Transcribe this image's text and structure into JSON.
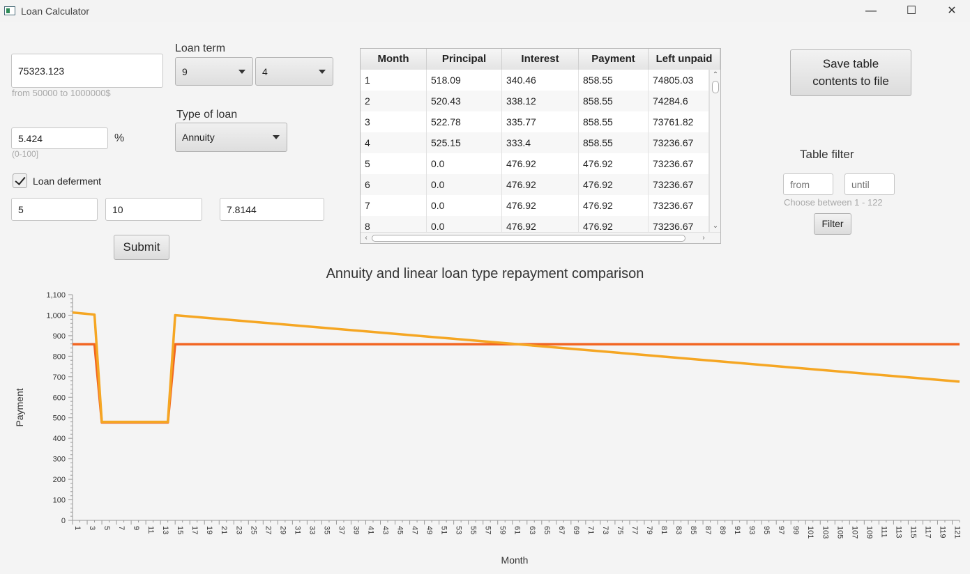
{
  "window": {
    "title": "Loan Calculator"
  },
  "loan_amount": {
    "value": "75323.123",
    "hint": "from 50000 to 1000000$"
  },
  "loan_term": {
    "label": "Loan term",
    "years": "9",
    "months": "4"
  },
  "interest": {
    "value": "5.424",
    "unit": "%",
    "hint": "(0-100]"
  },
  "loan_type": {
    "label": "Type of loan",
    "value": "Annuity"
  },
  "deferment": {
    "label": "Loan deferment",
    "checked": true,
    "start": "5",
    "end": "10",
    "rate": "7.8144"
  },
  "submit_label": "Submit",
  "save_label_line1": "Save table",
  "save_label_line2": "contents to file",
  "filter": {
    "title": "Table filter",
    "from_placeholder": "from",
    "until_placeholder": "until",
    "hint": "Choose between 1 - 122",
    "button": "Filter"
  },
  "table": {
    "columns": [
      "Month",
      "Principal",
      "Interest",
      "Payment",
      "Left unpaid"
    ],
    "rows": [
      [
        "1",
        "518.09",
        "340.46",
        "858.55",
        "74805.03"
      ],
      [
        "2",
        "520.43",
        "338.12",
        "858.55",
        "74284.6"
      ],
      [
        "3",
        "522.78",
        "335.77",
        "858.55",
        "73761.82"
      ],
      [
        "4",
        "525.15",
        "333.4",
        "858.55",
        "73236.67"
      ],
      [
        "5",
        "0.0",
        "476.92",
        "476.92",
        "73236.67"
      ],
      [
        "6",
        "0.0",
        "476.92",
        "476.92",
        "73236.67"
      ],
      [
        "7",
        "0.0",
        "476.92",
        "476.92",
        "73236.67"
      ],
      [
        "8",
        "0.0",
        "476.92",
        "476.92",
        "73236.67"
      ]
    ]
  },
  "colors": {
    "annuity": "#f26522",
    "linear": "#f5a623"
  },
  "chart_data": {
    "type": "line",
    "title": "Annuity and linear loan type repayment comparison",
    "xlabel": "Month",
    "ylabel": "Payment",
    "xlim": [
      1,
      122
    ],
    "ylim": [
      0,
      1100
    ],
    "y_ticks": [
      0,
      100,
      200,
      300,
      400,
      500,
      600,
      700,
      800,
      900,
      1000,
      1100
    ],
    "y_tick_labels": [
      "0",
      "100",
      "200",
      "300",
      "400",
      "500",
      "600",
      "700",
      "800",
      "900",
      "1,000",
      "1,100"
    ],
    "x_ticks": [
      1,
      3,
      5,
      7,
      9,
      11,
      13,
      15,
      17,
      19,
      21,
      23,
      25,
      27,
      29,
      31,
      33,
      35,
      37,
      39,
      41,
      43,
      45,
      47,
      49,
      51,
      53,
      55,
      57,
      59,
      61,
      63,
      65,
      67,
      69,
      71,
      73,
      75,
      77,
      79,
      81,
      83,
      85,
      87,
      89,
      91,
      93,
      95,
      97,
      99,
      101,
      103,
      105,
      107,
      109,
      111,
      113,
      115,
      117,
      119,
      121
    ],
    "series": [
      {
        "points": [
          [
            1,
            858.55
          ],
          [
            4,
            858.55
          ],
          [
            5,
            476.92
          ],
          [
            14,
            476.92
          ],
          [
            15,
            858.55
          ],
          [
            122,
            858.55
          ]
        ]
      },
      {
        "points": [
          [
            1,
            1013
          ],
          [
            4,
            1003
          ],
          [
            5,
            480
          ],
          [
            14,
            480
          ],
          [
            15,
            1000
          ],
          [
            122,
            676
          ]
        ]
      }
    ]
  }
}
